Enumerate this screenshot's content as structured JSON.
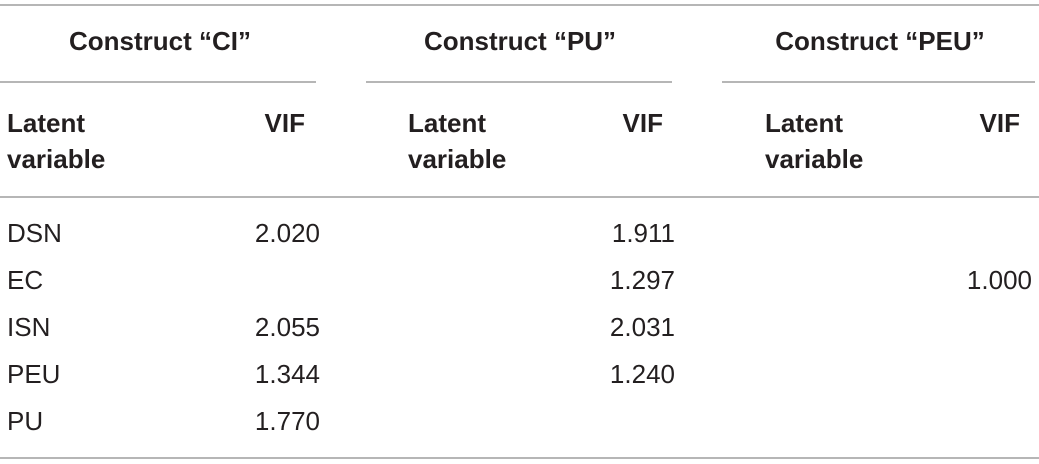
{
  "table": {
    "groups": [
      "Construct “CI”",
      "Construct “PU”",
      "Construct “PEU”"
    ],
    "subheaders": [
      {
        "latent": [
          "Latent",
          "variable"
        ],
        "vif": "VIF"
      },
      {
        "latent": [
          "Latent",
          "variable"
        ],
        "vif": "VIF"
      },
      {
        "latent": [
          "Latent",
          "variable"
        ],
        "vif": "VIF"
      }
    ],
    "rows": [
      {
        "label": "DSN",
        "values": [
          "2.020",
          "1.911",
          null
        ]
      },
      {
        "label": "EC",
        "values": [
          null,
          "1.297",
          "1.000"
        ]
      },
      {
        "label": "ISN",
        "values": [
          "2.055",
          "2.031",
          null
        ]
      },
      {
        "label": "PEU",
        "values": [
          "1.344",
          "1.240",
          null
        ]
      },
      {
        "label": "PU",
        "values": [
          "1.770",
          null,
          null
        ]
      }
    ]
  }
}
